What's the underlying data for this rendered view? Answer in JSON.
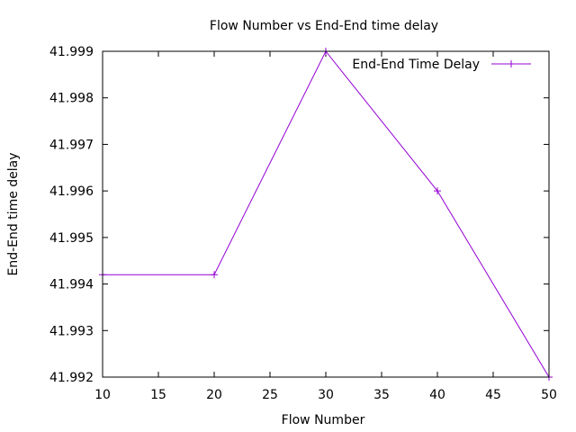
{
  "chart_data": {
    "type": "line",
    "title": "Flow Number vs End-End time delay",
    "xlabel": "Flow Number",
    "ylabel": "End-End time delay",
    "xlim": [
      10,
      50
    ],
    "ylim": [
      41.992,
      41.999
    ],
    "xticks": [
      10,
      15,
      20,
      25,
      30,
      35,
      40,
      45,
      50
    ],
    "yticks": [
      41.992,
      41.993,
      41.994,
      41.995,
      41.996,
      41.997,
      41.998,
      41.999
    ],
    "ytick_labels": [
      "41.992",
      "41.993",
      "41.994",
      "41.995",
      "41.996",
      "41.997",
      "41.998",
      "41.999"
    ],
    "legend_position": "top-right",
    "grid": false,
    "series": [
      {
        "name": "End-End Time Delay",
        "color": "#9400d3",
        "marker": "plus",
        "x": [
          10,
          20,
          30,
          40,
          50
        ],
        "y": [
          41.9942,
          41.9942,
          41.999,
          41.996,
          41.992
        ]
      }
    ]
  }
}
